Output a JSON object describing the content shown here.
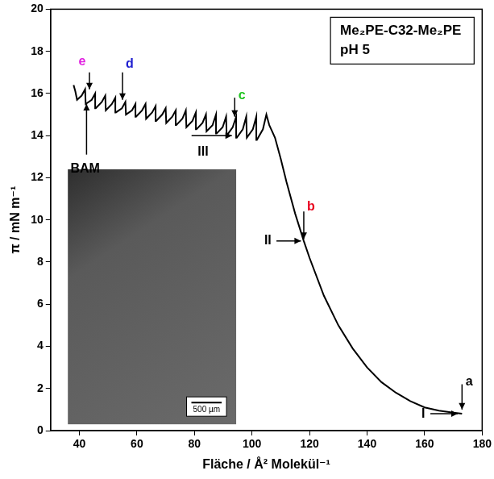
{
  "chart_data": {
    "type": "line",
    "title": "Me₂PE-C32-Me₂PE",
    "subtitle": "pH 5",
    "x_label": "Fläche / Å² Molekül⁻¹",
    "y_label": "π / mN m⁻¹",
    "xlim": [
      30,
      180
    ],
    "xticks": [
      40,
      60,
      80,
      100,
      120,
      140,
      160,
      180
    ],
    "ylim": [
      0,
      20
    ],
    "yticks": [
      0,
      2,
      4,
      6,
      8,
      10,
      12,
      14,
      16,
      18,
      20
    ],
    "grid": false,
    "color": "#000000",
    "x": [
      173,
      170,
      165,
      160,
      155,
      150,
      145,
      140,
      135,
      130,
      125,
      120,
      118,
      115,
      112,
      110,
      108,
      107,
      106,
      105,
      103.8,
      101.7,
      101.5,
      100.3,
      98.2,
      98,
      96.8,
      94.7,
      94.5,
      93.3,
      91.2,
      91,
      89.8,
      87.7,
      87.5,
      86.3,
      84.2,
      84,
      82.8,
      80.7,
      80.5,
      79.3,
      77.2,
      77,
      75.8,
      73.7,
      73.5,
      72.3,
      70.2,
      70,
      68.8,
      66.7,
      66.5,
      65.3,
      63.2,
      63,
      61.8,
      59.7,
      59.5,
      58.3,
      56.2,
      56,
      54.8,
      52.7,
      52.5,
      51.3,
      49.2,
      49,
      47.8,
      45.7,
      45.5,
      44.3,
      42.2,
      42,
      40.8,
      39.2,
      38.6,
      38
    ],
    "values": [
      0.8,
      0.85,
      0.95,
      1.1,
      1.4,
      1.8,
      2.3,
      3.0,
      3.9,
      5.0,
      6.4,
      8.2,
      9.0,
      10.3,
      11.8,
      12.9,
      13.9,
      14.2,
      14.5,
      15.0,
      14.3,
      13.8,
      14.9,
      14.3,
      13.9,
      14.9,
      14.3,
      13.9,
      14.9,
      14.4,
      14.0,
      14.9,
      14.4,
      14.1,
      15.0,
      14.5,
      14.2,
      15.0,
      14.6,
      14.3,
      15.1,
      14.7,
      14.4,
      15.2,
      14.8,
      14.5,
      15.2,
      14.9,
      14.6,
      15.3,
      15.0,
      14.7,
      15.4,
      15.1,
      14.8,
      15.5,
      15.2,
      14.9,
      15.5,
      15.2,
      15.0,
      15.6,
      15.3,
      15.1,
      15.8,
      15.5,
      15.2,
      15.9,
      15.6,
      15.3,
      16.0,
      15.7,
      15.5,
      16.2,
      15.9,
      15.7,
      16.1,
      16.4
    ],
    "annotations": [
      {
        "text": "a",
        "x": 175.5,
        "y": 2.3,
        "color": "#000000",
        "arrow": [
          [
            173,
            2.2
          ],
          [
            173,
            1.0
          ]
        ]
      },
      {
        "text": "b",
        "x": 120.5,
        "y": 10.6,
        "color": "#e8001c",
        "arrow": [
          [
            118,
            10.4
          ],
          [
            118,
            9.1
          ]
        ]
      },
      {
        "text": "c",
        "x": 96.5,
        "y": 15.9,
        "color": "#22c422",
        "arrow": [
          [
            94,
            15.8
          ],
          [
            94,
            14.9
          ]
        ]
      },
      {
        "text": "d",
        "x": 57.5,
        "y": 17.4,
        "color": "#2020d0",
        "arrow": [
          [
            55,
            17.0
          ],
          [
            55,
            15.7
          ]
        ]
      },
      {
        "text": "e",
        "x": 41,
        "y": 17.5,
        "color": "#e020e0",
        "arrow": [
          [
            43.5,
            17.0
          ],
          [
            43.5,
            16.2
          ]
        ]
      },
      {
        "text": "BAM",
        "x": 42,
        "y": 12.4,
        "color": "#000000",
        "arrow": [
          [
            42.5,
            13.1
          ],
          [
            42.5,
            15.5
          ]
        ]
      },
      {
        "text": "I",
        "x": 159.5,
        "y": 0.8,
        "color": "#000000",
        "arrow": [
          [
            162,
            0.8
          ],
          [
            171.5,
            0.8
          ]
        ]
      },
      {
        "text": "II",
        "x": 105.5,
        "y": 9.0,
        "color": "#000000",
        "arrow": [
          [
            108.5,
            9.0
          ],
          [
            117,
            9.0
          ]
        ]
      },
      {
        "text": "III",
        "x": 83,
        "y": 13.2,
        "color": "#000000",
        "arrow": [
          [
            79,
            14.0
          ],
          [
            93,
            14.0
          ]
        ]
      }
    ],
    "inset": {
      "scale_bar": "500 µm"
    }
  }
}
